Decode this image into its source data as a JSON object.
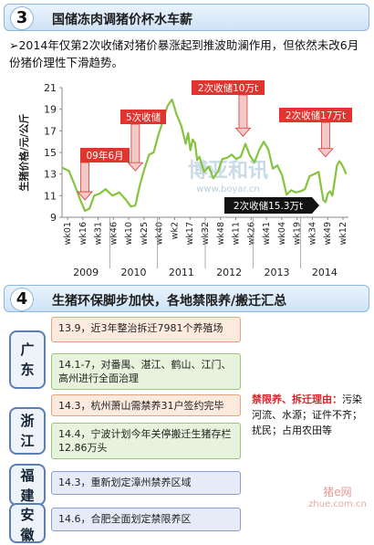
{
  "section3": {
    "number": "3",
    "title": "国储冻肉调猪价杯水车薪",
    "summary": "➢2014年仅第2次收储对猪价暴涨起到推波助澜作用，但依然未改6月份猪价理性下滑趋势。"
  },
  "chart_data": {
    "type": "line",
    "ylabel": "生猪价格/元/公斤",
    "ylim": [
      9,
      21
    ],
    "yticks": [
      9,
      11,
      13,
      15,
      17,
      19,
      21
    ],
    "xticks": [
      "wk01",
      "wk16",
      "wk31",
      "wk46",
      "wk10",
      "wk25",
      "wk40",
      "wk2",
      "wk17",
      "wk32",
      "wk48",
      "wk11",
      "wk26",
      "wk41",
      "wk04",
      "wk19",
      "wk34",
      "wk49",
      "wk12"
    ],
    "years": [
      "2009",
      "2010",
      "2011",
      "2012",
      "2013",
      "2014"
    ],
    "series_color": "#86c440",
    "x": [
      0,
      6,
      11,
      16,
      20,
      24,
      28,
      33,
      38,
      44,
      50,
      56,
      60,
      64,
      68,
      72,
      76,
      80,
      84,
      88,
      92,
      96,
      100,
      104,
      108,
      110,
      112,
      114,
      116,
      118,
      120,
      124,
      128,
      132,
      136,
      140,
      144,
      148,
      152,
      156,
      160,
      164,
      168,
      172,
      176,
      180,
      184,
      188,
      192,
      196,
      200,
      204,
      208,
      212,
      216,
      220,
      224,
      228,
      230,
      232,
      234,
      236,
      238,
      240,
      242,
      244,
      246,
      248
    ],
    "y": [
      13.6,
      13.3,
      12.0,
      10.6,
      9.6,
      9.8,
      11.0,
      11.2,
      11.6,
      11.0,
      11.3,
      10.6,
      10.0,
      10.1,
      12.0,
      13.5,
      14.8,
      15.0,
      16.6,
      17.9,
      19.3,
      19.9,
      18.5,
      17.5,
      15.8,
      16.8,
      15.2,
      16.2,
      15.9,
      14.3,
      14.6,
      13.2,
      13.7,
      12.6,
      13.2,
      14.4,
      14.5,
      14.8,
      14.4,
      14.6,
      15.8,
      14.7,
      14.1,
      15.2,
      16.0,
      15.3,
      13.5,
      13.8,
      12.9,
      11.1,
      11.5,
      11.3,
      11.4,
      11.6,
      12.8,
      13.0,
      13.2,
      10.6,
      10.4,
      11.2,
      11.4,
      11.0,
      12.4,
      13.8,
      14.2,
      13.9,
      13.5,
      13.0
    ],
    "annotations": [
      {
        "text": "09年6月",
        "x": 20
      },
      {
        "text": "5次收储",
        "x": 64
      },
      {
        "text": "2次收储10万t",
        "x": 158
      },
      {
        "text": "2次收储17万t",
        "x": 230
      },
      {
        "text": "2次收储15.3万t",
        "x": 237
      }
    ],
    "watermark_text": "博亚和讯",
    "watermark_url": "www.boyar.cn"
  },
  "section4": {
    "number": "4",
    "title": "生猪环保脚步加快，各地禁限养/搬迁汇总",
    "provinces": [
      {
        "name": "广东",
        "items": [
          "13.9，近3年整治拆迁7981个养殖场",
          "14.1-7，对番禺、湛江、鹤山、江门、高州进行全面治理"
        ]
      },
      {
        "name": "浙江",
        "items": [
          "14.3，杭州萧山需禁养31户签约完毕",
          "14.4，宁波计划今年关停搬迁生猪存栏12.86万头"
        ]
      },
      {
        "name": "福建",
        "items": [
          "14.3，重新划定漳州禁养区域"
        ]
      },
      {
        "name": "安徽",
        "items": [
          "14.6，合肥全面划定禁限养区"
        ]
      }
    ],
    "reason_title": "禁限养、拆迁理由：",
    "reason_text": "污染河流、水源；证件不齐；扰民；占用农田等"
  },
  "watermark": {
    "site": "猪e网",
    "domain": "zhue.com.cn"
  }
}
